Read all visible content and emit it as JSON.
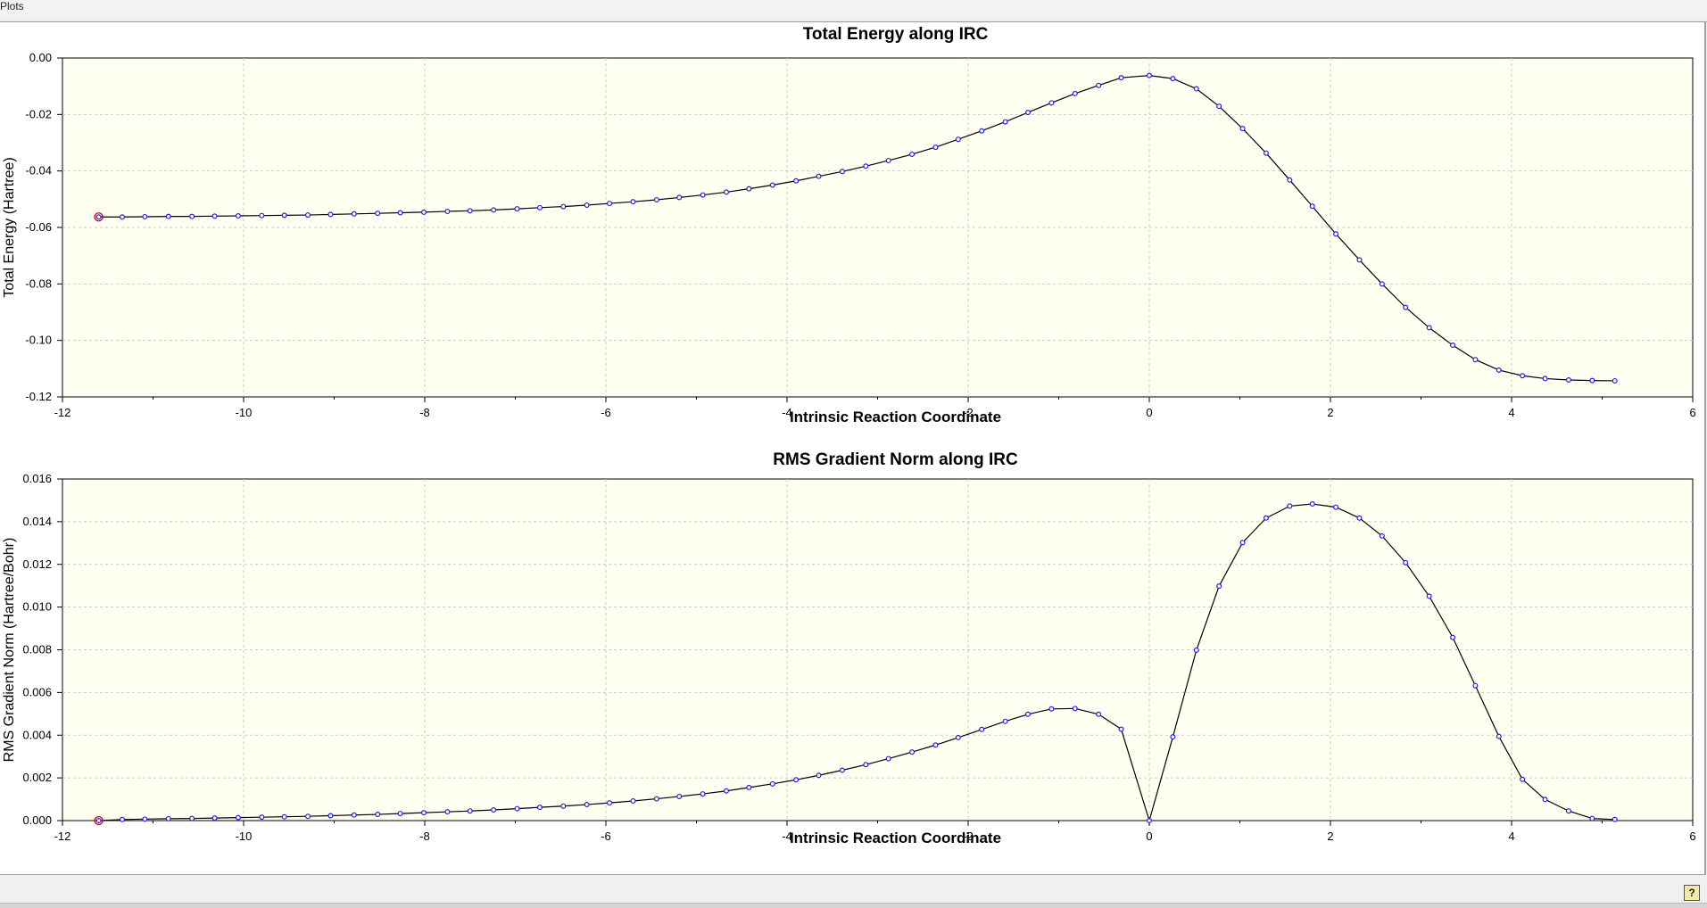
{
  "window": {
    "title": "Plots"
  },
  "help_button": {
    "label": "?"
  },
  "colors": {
    "plot_bg": "#fffff2",
    "marker": "#2020e0",
    "line": "#000000",
    "highlight": "#d00000"
  },
  "chart_data": [
    {
      "type": "line",
      "title": "Total Energy along IRC",
      "xlabel": "Intrinsic Reaction Coordinate",
      "ylabel": "Total Energy (Hartree)",
      "xlim": [
        -12,
        6
      ],
      "ylim": [
        -0.12,
        0.0
      ],
      "xticks": [
        "-12",
        "-10",
        "-8",
        "-6",
        "-4",
        "-2",
        "0",
        "2",
        "4",
        "6"
      ],
      "yticks": [
        "0.00",
        "-0.02",
        "-0.04",
        "-0.06",
        "-0.08",
        "-0.10",
        "-0.12"
      ],
      "grid": true,
      "highlighted_point": [
        -11.6,
        -0.0563
      ],
      "x": [
        -11.6,
        -11.34,
        -11.09,
        -10.83,
        -10.57,
        -10.32,
        -10.06,
        -9.8,
        -9.55,
        -9.29,
        -9.04,
        -8.78,
        -8.52,
        -8.27,
        -8.01,
        -7.75,
        -7.5,
        -7.24,
        -6.98,
        -6.73,
        -6.47,
        -6.21,
        -5.96,
        -5.7,
        -5.44,
        -5.19,
        -4.93,
        -4.67,
        -4.42,
        -4.16,
        -3.9,
        -3.65,
        -3.39,
        -3.13,
        -2.88,
        -2.62,
        -2.36,
        -2.11,
        -1.85,
        -1.59,
        -1.34,
        -1.08,
        -0.82,
        -0.56,
        -0.31,
        0.0,
        0.26,
        0.52,
        0.77,
        1.03,
        1.29,
        1.55,
        1.8,
        2.06,
        2.32,
        2.57,
        2.83,
        3.09,
        3.35,
        3.6,
        3.86,
        4.12,
        4.37,
        4.63,
        4.89,
        5.14
      ],
      "y": [
        -0.0563,
        -0.0563,
        -0.0562,
        -0.0561,
        -0.0561,
        -0.056,
        -0.0559,
        -0.0558,
        -0.0557,
        -0.0556,
        -0.0554,
        -0.0552,
        -0.055,
        -0.0548,
        -0.0546,
        -0.0543,
        -0.0541,
        -0.0538,
        -0.0534,
        -0.053,
        -0.0526,
        -0.0521,
        -0.0515,
        -0.0509,
        -0.0502,
        -0.0494,
        -0.0485,
        -0.0475,
        -0.0463,
        -0.045,
        -0.0435,
        -0.0419,
        -0.0402,
        -0.0383,
        -0.0363,
        -0.0341,
        -0.0316,
        -0.0288,
        -0.0258,
        -0.0226,
        -0.0193,
        -0.0159,
        -0.0126,
        -0.0097,
        -0.007,
        -0.0062,
        -0.0073,
        -0.0109,
        -0.0171,
        -0.025,
        -0.0337,
        -0.0432,
        -0.0525,
        -0.0623,
        -0.0715,
        -0.08,
        -0.0883,
        -0.0955,
        -0.1017,
        -0.1068,
        -0.1105,
        -0.1125,
        -0.1135,
        -0.114,
        -0.1142,
        -0.1143
      ]
    },
    {
      "type": "line",
      "title": "RMS Gradient Norm along IRC",
      "xlabel": "Intrinsic Reaction Coordinate",
      "ylabel": "RMS Gradient Norm (Hartree/Bohr)",
      "xlim": [
        -12,
        6
      ],
      "ylim": [
        0.0,
        0.016
      ],
      "xticks": [
        "-12",
        "-10",
        "-8",
        "-6",
        "-4",
        "-2",
        "0",
        "2",
        "4",
        "6"
      ],
      "yticks": [
        "0.016",
        "0.014",
        "0.012",
        "0.010",
        "0.008",
        "0.006",
        "0.004",
        "0.002",
        "0.000"
      ],
      "grid": true,
      "highlighted_point": [
        -11.6,
        0.0
      ],
      "x": [
        -11.6,
        -11.34,
        -11.09,
        -10.83,
        -10.57,
        -10.32,
        -10.06,
        -9.8,
        -9.55,
        -9.29,
        -9.04,
        -8.78,
        -8.52,
        -8.27,
        -8.01,
        -7.75,
        -7.5,
        -7.24,
        -6.98,
        -6.73,
        -6.47,
        -6.21,
        -5.96,
        -5.7,
        -5.44,
        -5.19,
        -4.93,
        -4.67,
        -4.42,
        -4.16,
        -3.9,
        -3.65,
        -3.39,
        -3.13,
        -2.88,
        -2.62,
        -2.36,
        -2.11,
        -1.85,
        -1.59,
        -1.34,
        -1.08,
        -0.82,
        -0.56,
        -0.31,
        0.0,
        0.26,
        0.52,
        0.77,
        1.03,
        1.29,
        1.55,
        1.8,
        2.06,
        2.32,
        2.57,
        2.83,
        3.09,
        3.35,
        3.6,
        3.86,
        4.12,
        4.37,
        4.63,
        4.89,
        5.14
      ],
      "y": [
        0.0,
        5e-05,
        7e-05,
        9e-05,
        0.0001,
        0.00012,
        0.00014,
        0.00016,
        0.00018,
        0.0002,
        0.00023,
        0.00026,
        0.00029,
        0.00033,
        0.00037,
        0.00041,
        0.00045,
        0.0005,
        0.00056,
        0.00062,
        0.00068,
        0.00075,
        0.00083,
        0.00092,
        0.00102,
        0.00113,
        0.00125,
        0.00139,
        0.00155,
        0.00172,
        0.00191,
        0.00212,
        0.00236,
        0.00262,
        0.0029,
        0.00321,
        0.00354,
        0.00389,
        0.00427,
        0.00465,
        0.00498,
        0.00523,
        0.00525,
        0.00498,
        0.00428,
        0.0,
        0.00392,
        0.00798,
        0.01098,
        0.01302,
        0.01417,
        0.01473,
        0.01483,
        0.01468,
        0.01417,
        0.01333,
        0.01208,
        0.01051,
        0.00858,
        0.00632,
        0.00394,
        0.00193,
        0.00099,
        0.00045,
        0.0001,
        5e-05
      ]
    }
  ]
}
